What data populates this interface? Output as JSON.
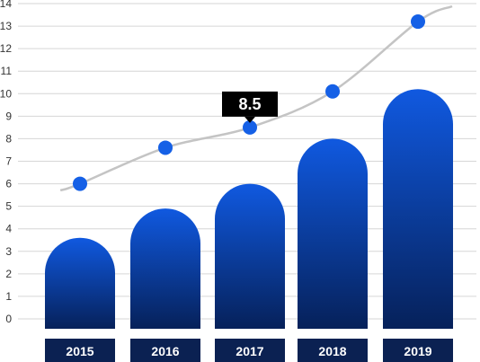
{
  "chart_data": {
    "type": "bar",
    "categories": [
      "2015",
      "2016",
      "2017",
      "2018",
      "2019"
    ],
    "series": [
      {
        "type": "bar",
        "values": [
          3.6,
          4.9,
          6.0,
          8.0,
          10.2
        ]
      },
      {
        "type": "line",
        "values": [
          6.0,
          7.6,
          8.5,
          10.1,
          13.2
        ]
      }
    ],
    "ylim": [
      0,
      14
    ],
    "yticks": [
      0,
      1,
      2,
      3,
      4,
      5,
      6,
      7,
      8,
      9,
      10,
      11,
      12,
      13,
      14
    ],
    "grid": true,
    "highlight": {
      "category": "2017",
      "label": "8.5"
    },
    "colors": {
      "bar_top": "#1059e0",
      "bar_bottom": "#06215a",
      "label_box": "#0b2152",
      "points": "#1560e6",
      "line": "#c4c4c4",
      "grid": "#d6d6d6",
      "tooltip": "#000000"
    }
  }
}
